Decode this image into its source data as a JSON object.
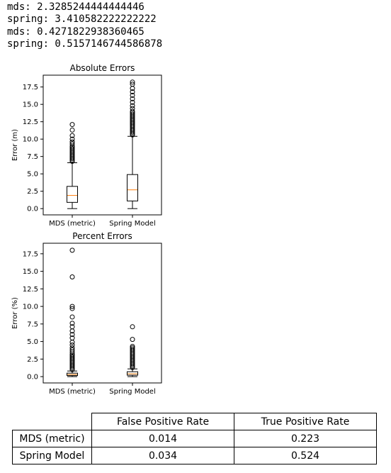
{
  "console_lines": [
    "mds: 2.3285244444444446",
    "spring: 3.410582222222222",
    "mds: 0.4271822938360465",
    "spring: 0.5157146744586878"
  ],
  "chart_data": [
    {
      "type": "boxplot",
      "title": "Absolute Errors",
      "ylabel": "Error (m)",
      "ylim": [
        -0.9,
        19.2
      ],
      "yticks": [
        "0.0",
        "2.5",
        "5.0",
        "7.5",
        "10.0",
        "12.5",
        "15.0",
        "17.5"
      ],
      "yticks_values": [
        0,
        2.5,
        5,
        7.5,
        10,
        12.5,
        15,
        17.5
      ],
      "categories": [
        "MDS (metric)",
        "Spring Model"
      ],
      "boxes": [
        {
          "whisker_low": 0.0,
          "q1": 0.9,
          "median": 1.9,
          "q3": 3.2,
          "whisker_high": 6.6,
          "outliers": [
            6.8,
            7.0,
            7.2,
            7.4,
            7.6,
            7.8,
            8.0,
            8.2,
            8.4,
            8.6,
            8.8,
            9.0,
            9.3,
            9.6,
            10.0,
            10.5,
            11.3,
            12.1
          ]
        },
        {
          "whisker_low": 0.0,
          "q1": 1.1,
          "median": 2.7,
          "q3": 4.9,
          "whisker_high": 10.4,
          "outliers": [
            10.6,
            10.8,
            11.0,
            11.2,
            11.4,
            11.6,
            11.8,
            12.0,
            12.2,
            12.4,
            12.6,
            12.8,
            13.0,
            13.2,
            13.4,
            13.6,
            13.8,
            14.0,
            14.4,
            14.8,
            15.3,
            15.8,
            16.3,
            16.8,
            17.3,
            17.9,
            18.2
          ]
        }
      ]
    },
    {
      "type": "boxplot",
      "title": "Percent Errors",
      "ylabel": "Error (%)",
      "ylim": [
        -0.9,
        19.0
      ],
      "yticks": [
        "0.0",
        "2.5",
        "5.0",
        "7.5",
        "10.0",
        "12.5",
        "15.0",
        "17.5"
      ],
      "yticks_values": [
        0,
        2.5,
        5,
        7.5,
        10,
        12.5,
        15,
        17.5
      ],
      "categories": [
        "MDS (metric)",
        "Spring Model"
      ],
      "boxes": [
        {
          "whisker_low": 0.0,
          "q1": 0.15,
          "median": 0.3,
          "q3": 0.5,
          "whisker_high": 0.8,
          "outliers": [
            1.0,
            1.2,
            1.4,
            1.6,
            1.8,
            2.0,
            2.2,
            2.4,
            2.6,
            2.8,
            3.0,
            3.2,
            3.5,
            3.8,
            4.1,
            4.5,
            4.9,
            5.5,
            6.0,
            6.5,
            7.1,
            7.6,
            8.5,
            9.7,
            10.0,
            14.2,
            18.0
          ]
        },
        {
          "whisker_low": 0.0,
          "q1": 0.2,
          "median": 0.4,
          "q3": 0.7,
          "whisker_high": 1.1,
          "outliers": [
            1.3,
            1.5,
            1.7,
            1.9,
            2.1,
            2.3,
            2.5,
            2.7,
            2.9,
            3.1,
            3.3,
            3.5,
            3.7,
            3.9,
            4.1,
            4.3,
            5.3,
            7.1
          ]
        }
      ]
    },
    {
      "type": "table",
      "col_labels": [
        "False Positive Rate",
        "True Positive Rate"
      ],
      "row_labels": [
        "MDS (metric)",
        "Spring Model"
      ],
      "cells": [
        [
          "0.014",
          "0.223"
        ],
        [
          "0.034",
          "0.524"
        ]
      ]
    }
  ],
  "colors": {
    "median": "#ff7f0e",
    "box": "#000000"
  }
}
